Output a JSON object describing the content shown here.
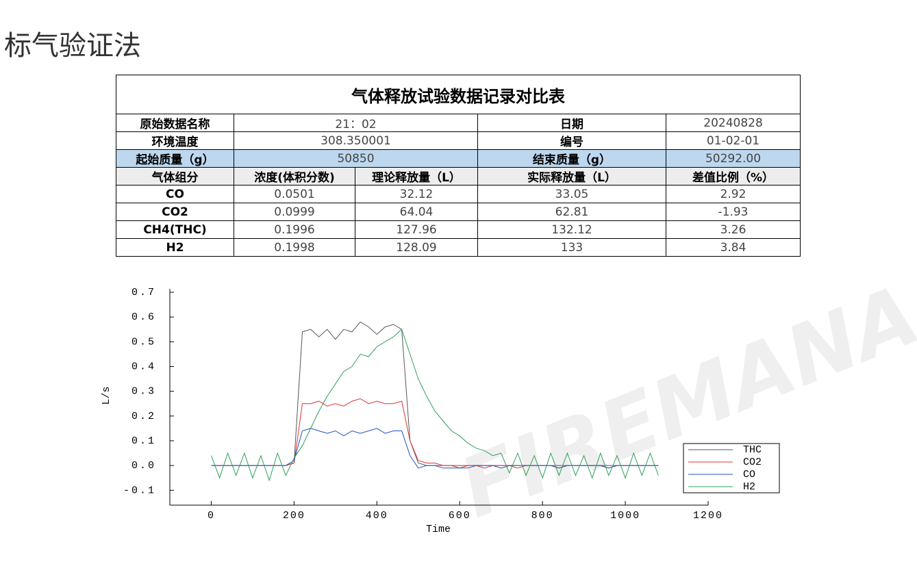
{
  "header": {
    "title": "标气验证法"
  },
  "table": {
    "title": "气体释放试验数据记录对比表",
    "info_rows": [
      [
        "原始数据名称",
        "21：02",
        "日期",
        "20240828"
      ],
      [
        "环境温度",
        "308.350001",
        "编号",
        "01-02-01"
      ],
      [
        "起始质量（g）",
        "50850",
        "结束质量（g）",
        "50292.00"
      ]
    ],
    "header": [
      "气体组分",
      "浓度(体积分数)",
      "理论释放量（L）",
      "实际释放量（L）",
      "差值比例（%）"
    ],
    "rows": [
      [
        "CO",
        "0.0501",
        "32.12",
        "33.05",
        "2.92"
      ],
      [
        "CO2",
        "0.0999",
        "64.04",
        "62.81",
        "-1.93"
      ],
      [
        "CH4(THC)",
        "0.1996",
        "127.96",
        "132.12",
        "3.26"
      ],
      [
        "H2",
        "0.1998",
        "128.09",
        "133",
        "3.84"
      ]
    ]
  },
  "watermark": "FIREMANA",
  "chart_data": {
    "type": "line",
    "x_label": "Time",
    "y_label": "L/s",
    "x": [
      0,
      20,
      40,
      60,
      80,
      100,
      120,
      140,
      160,
      180,
      200,
      220,
      240,
      260,
      280,
      300,
      320,
      340,
      360,
      380,
      400,
      420,
      440,
      460,
      480,
      500,
      520,
      540,
      560,
      580,
      600,
      620,
      640,
      660,
      680,
      700,
      720,
      740,
      760,
      780,
      800,
      820,
      840,
      860,
      880,
      900,
      920,
      940,
      960,
      980,
      1000,
      1020,
      1040,
      1060,
      1080
    ],
    "series": [
      {
        "name": "THC",
        "color": "#555555",
        "values": [
          0,
          0,
          0,
          0,
          0,
          0,
          0,
          0,
          0,
          0,
          0.01,
          0.54,
          0.55,
          0.52,
          0.55,
          0.51,
          0.55,
          0.54,
          0.58,
          0.56,
          0.53,
          0.56,
          0.57,
          0.55,
          0.1,
          0.01,
          0,
          0,
          0,
          0,
          0,
          0,
          0,
          0,
          0,
          0,
          0,
          0,
          0,
          0,
          0,
          0,
          0,
          0,
          0,
          0,
          0,
          0,
          0,
          0,
          0,
          0,
          0,
          0,
          0
        ]
      },
      {
        "name": "CO2",
        "color": "#e03030",
        "values": [
          0,
          0,
          0,
          0,
          0,
          0,
          0,
          0,
          0,
          0,
          0.01,
          0.25,
          0.25,
          0.26,
          0.24,
          0.25,
          0.24,
          0.26,
          0.27,
          0.25,
          0.26,
          0.25,
          0.25,
          0.26,
          0.1,
          0.02,
          0.01,
          0.01,
          0,
          0,
          -0.01,
          0,
          0,
          -0.01,
          0,
          0,
          0,
          -0.01,
          0,
          0,
          0,
          0,
          -0.01,
          0,
          0,
          0,
          0,
          0,
          -0.01,
          0,
          0,
          0,
          0,
          0,
          0
        ]
      },
      {
        "name": "CO",
        "color": "#2050c0",
        "values": [
          0,
          0,
          0,
          0,
          0,
          0,
          0,
          0,
          0,
          0,
          0.02,
          0.14,
          0.15,
          0.14,
          0.13,
          0.14,
          0.12,
          0.14,
          0.13,
          0.14,
          0.15,
          0.13,
          0.14,
          0.14,
          0.04,
          -0.01,
          0,
          0,
          -0.01,
          -0.01,
          -0.01,
          -0.01,
          0,
          0,
          0,
          -0.01,
          0,
          0,
          0,
          0,
          0,
          0,
          -0.01,
          0,
          0,
          0,
          0,
          0,
          -0.01,
          0,
          0,
          0,
          0,
          0,
          0
        ]
      },
      {
        "name": "H2",
        "color": "#2ea05a",
        "values": [
          0.04,
          -0.05,
          0.05,
          -0.04,
          0.05,
          -0.05,
          0.04,
          -0.06,
          0.05,
          -0.04,
          0.03,
          0.08,
          0.15,
          0.22,
          0.28,
          0.33,
          0.38,
          0.4,
          0.45,
          0.44,
          0.48,
          0.5,
          0.52,
          0.55,
          0.45,
          0.35,
          0.28,
          0.22,
          0.18,
          0.14,
          0.12,
          0.09,
          0.07,
          0.06,
          0.04,
          0.05,
          -0.03,
          0.05,
          -0.04,
          0.04,
          -0.05,
          0.05,
          -0.04,
          0.05,
          -0.04,
          0.04,
          -0.05,
          0.05,
          -0.04,
          0.04,
          -0.05,
          0.05,
          -0.04,
          0.05,
          -0.04
        ]
      }
    ],
    "xlim": [
      -100,
      1200
    ],
    "ylim": [
      -0.16,
      0.7
    ],
    "xticks": [
      0,
      200,
      400,
      600,
      800,
      1000,
      1200
    ],
    "yticks": [
      {
        "value": 0.7,
        "label": "0.7"
      },
      {
        "value": 0.6,
        "label": "0.6"
      },
      {
        "value": 0.5,
        "label": "0.5"
      },
      {
        "value": 0.4,
        "label": "0.4"
      },
      {
        "value": 0.3,
        "label": "0.3"
      },
      {
        "value": 0.2,
        "label": "0.2"
      },
      {
        "value": 0.1,
        "label": "0.1"
      },
      {
        "value": 0,
        "label": "0.0"
      },
      {
        "value": -0.1,
        "label": "-0.1"
      }
    ],
    "grid": false,
    "legend": "right"
  }
}
